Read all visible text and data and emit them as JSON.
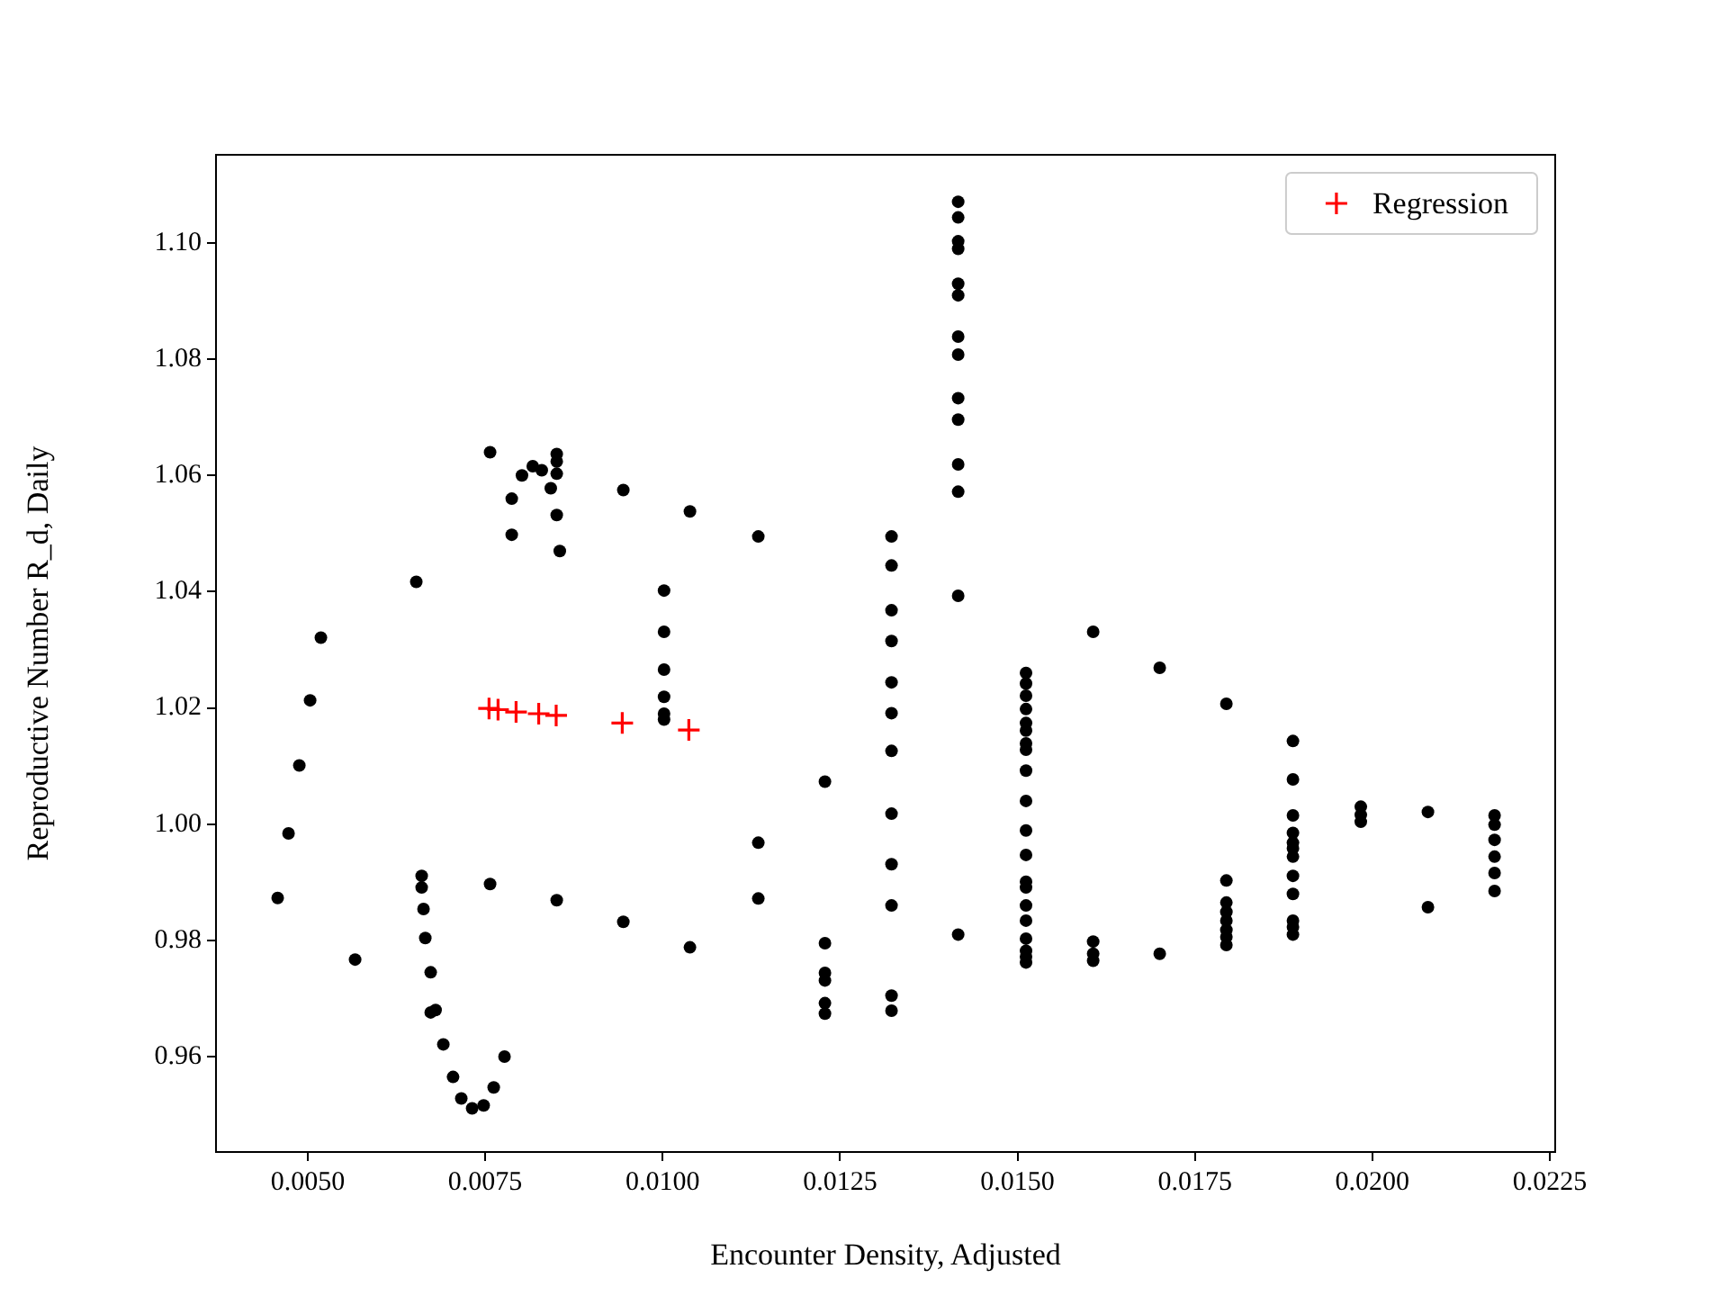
{
  "chart_data": {
    "type": "scatter",
    "xlabel": "Encounter Density, Adjusted",
    "ylabel": "Reproductive Number R_d, Daily",
    "xlim": [
      0.003707,
      0.022576
    ],
    "ylim": [
      0.94358,
      1.11518
    ],
    "xticks": [
      {
        "value": 0.005,
        "label": "0.0050"
      },
      {
        "value": 0.0075,
        "label": "0.0075"
      },
      {
        "value": 0.01,
        "label": "0.0100"
      },
      {
        "value": 0.0125,
        "label": "0.0125"
      },
      {
        "value": 0.015,
        "label": "0.0150"
      },
      {
        "value": 0.0175,
        "label": "0.0175"
      },
      {
        "value": 0.02,
        "label": "0.0200"
      },
      {
        "value": 0.0225,
        "label": "0.0225"
      }
    ],
    "yticks": [
      {
        "value": 0.96,
        "label": "0.96"
      },
      {
        "value": 0.98,
        "label": "0.98"
      },
      {
        "value": 1.0,
        "label": "1.00"
      },
      {
        "value": 1.02,
        "label": "1.02"
      },
      {
        "value": 1.04,
        "label": "1.04"
      },
      {
        "value": 1.06,
        "label": "1.06"
      },
      {
        "value": 1.08,
        "label": "1.08"
      },
      {
        "value": 1.1,
        "label": "1.10"
      }
    ],
    "legend": "top right",
    "series": [
      {
        "color": "#000000",
        "marker": "circle",
        "x": [
          0.004576,
          0.004729,
          0.004881,
          0.005033,
          0.005185,
          0.005667,
          0.006529,
          0.006605,
          0.006605,
          0.006631,
          0.006656,
          0.006732,
          0.006732,
          0.006801,
          0.00691,
          0.007047,
          0.007163,
          0.007316,
          0.007478,
          0.00762,
          0.007772,
          0.007569,
          0.008508,
          0.009446,
          0.010385,
          0.007569,
          0.007874,
          0.007874,
          0.008018,
          0.00817,
          0.008297,
          0.008424,
          0.008508,
          0.008508,
          0.008508,
          0.008508,
          0.008551,
          0.009446,
          0.010385,
          0.01002,
          0.01002,
          0.01002,
          0.01002,
          0.01002,
          0.01002,
          0.011348,
          0.011348,
          0.011348,
          0.012287,
          0.012287,
          0.012287,
          0.012287,
          0.012287,
          0.012287,
          0.013225,
          0.013225,
          0.013225,
          0.013225,
          0.013225,
          0.013225,
          0.013225,
          0.013225,
          0.013225,
          0.013225,
          0.013225,
          0.013225,
          0.014164,
          0.014164,
          0.014164,
          0.014164,
          0.014164,
          0.014164,
          0.014164,
          0.014164,
          0.014164,
          0.014164,
          0.014164,
          0.014164,
          0.014164,
          0.014164,
          0.01512,
          0.01512,
          0.01512,
          0.01512,
          0.01512,
          0.01512,
          0.01512,
          0.01512,
          0.01512,
          0.01512,
          0.01512,
          0.01512,
          0.01512,
          0.01512,
          0.01512,
          0.01512,
          0.01512,
          0.01512,
          0.01512,
          0.01512,
          0.016066,
          0.016066,
          0.016066,
          0.016066,
          0.017004,
          0.017004,
          0.017943,
          0.017943,
          0.017943,
          0.017943,
          0.017943,
          0.017943,
          0.017943,
          0.017943,
          0.018881,
          0.018881,
          0.018881,
          0.018881,
          0.018881,
          0.018881,
          0.018881,
          0.018881,
          0.018881,
          0.018881,
          0.018881,
          0.018881,
          0.019837,
          0.019837,
          0.019837,
          0.020783,
          0.020783,
          0.021722,
          0.021722,
          0.021722,
          0.021722,
          0.021722,
          0.021722
        ],
        "values": [
          0.9873,
          0.9984,
          1.0101,
          1.0213,
          1.0321,
          0.9767,
          1.0417,
          0.9911,
          0.9891,
          0.9854,
          0.9804,
          0.9745,
          0.9676,
          0.968,
          0.9621,
          0.9565,
          0.9528,
          0.9511,
          0.9516,
          0.9547,
          0.96,
          0.9897,
          0.9869,
          0.9832,
          0.9788,
          1.064,
          1.056,
          1.0498,
          1.06,
          1.0616,
          1.0609,
          1.0578,
          1.0637,
          1.0624,
          1.0603,
          1.0532,
          1.047,
          1.0575,
          1.0538,
          1.0402,
          1.0331,
          1.0266,
          1.0219,
          1.019,
          1.018,
          1.0495,
          0.9968,
          0.9872,
          1.0073,
          0.9795,
          0.9744,
          0.9731,
          0.9692,
          0.9674,
          1.0495,
          1.0445,
          1.0368,
          1.0315,
          1.0244,
          1.0191,
          1.0126,
          1.0018,
          0.9931,
          0.986,
          0.9705,
          0.9679,
          1.1071,
          1.1044,
          1.1003,
          1.099,
          1.093,
          1.091,
          1.0839,
          1.0808,
          1.0733,
          1.0696,
          1.0619,
          1.0572,
          1.0393,
          0.981,
          1.026,
          1.0242,
          1.0221,
          1.0198,
          1.0174,
          1.0161,
          1.0139,
          1.0128,
          1.0092,
          1.004,
          0.9989,
          0.9947,
          0.9901,
          0.9891,
          0.986,
          0.9834,
          0.9803,
          0.9782,
          0.9772,
          0.9762,
          1.0331,
          0.9798,
          0.9777,
          0.9765,
          1.0269,
          0.9777,
          1.0207,
          0.9903,
          0.9865,
          0.9849,
          0.9834,
          0.9818,
          0.9806,
          0.9792,
          1.0143,
          1.0077,
          1.0015,
          0.9985,
          0.9968,
          0.9958,
          0.9944,
          0.9911,
          0.988,
          0.9834,
          0.9823,
          0.981,
          1.003,
          1.0016,
          1.0004,
          1.0021,
          0.9857,
          1.0015,
          0.9999,
          0.9973,
          0.9944,
          0.9916,
          0.9885
        ]
      },
      {
        "name": "Regression",
        "color": "#ff0000",
        "marker": "cross",
        "x": [
          0.007554,
          0.007681,
          0.007935,
          0.008254,
          0.0085,
          0.009431,
          0.010369
        ],
        "values": [
          1.0199,
          1.0197,
          1.0193,
          1.019,
          1.0187,
          1.0174,
          1.0162
        ]
      }
    ]
  }
}
